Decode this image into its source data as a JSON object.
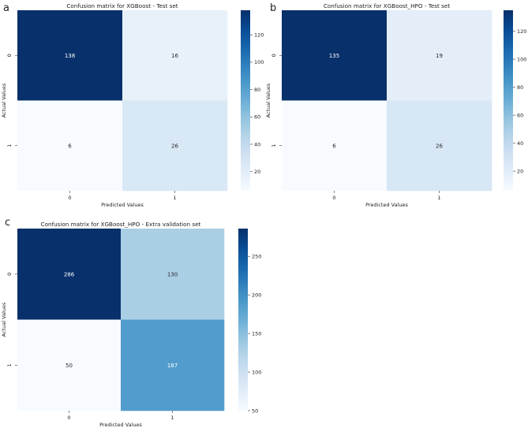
{
  "chart_data": [
    {
      "type": "heatmap",
      "panel_label": "a",
      "title": "Confusion matrix for XGBoost - Test set",
      "xlabel": "Predicted Values",
      "ylabel": "Actual Values",
      "x_ticks": [
        "0",
        "1"
      ],
      "y_ticks": [
        "0",
        "1"
      ],
      "values": [
        [
          138,
          16
        ],
        [
          6,
          26
        ]
      ],
      "color_range": [
        6,
        138
      ],
      "colorbar_ticks": [
        20,
        40,
        60,
        80,
        100,
        120
      ],
      "colormap": "Blues"
    },
    {
      "type": "heatmap",
      "panel_label": "b",
      "title": "Confusion matrix for XGBoost_HPO - Test set",
      "xlabel": "Predicted Values",
      "ylabel": "Actual Values",
      "x_ticks": [
        "0",
        "1"
      ],
      "y_ticks": [
        "0",
        "1"
      ],
      "values": [
        [
          135,
          19
        ],
        [
          6,
          26
        ]
      ],
      "color_range": [
        6,
        135
      ],
      "colorbar_ticks": [
        20,
        40,
        60,
        80,
        100,
        120
      ],
      "colormap": "Blues"
    },
    {
      "type": "heatmap",
      "panel_label": "c",
      "title": "Confusion matrix for XGBoost_HPO - Extra validation set",
      "xlabel": "Predicted Values",
      "ylabel": "Actual Values",
      "x_ticks": [
        "0",
        "1"
      ],
      "y_ticks": [
        "0",
        "1"
      ],
      "values": [
        [
          286,
          130
        ],
        [
          50,
          187
        ]
      ],
      "color_range": [
        50,
        286
      ],
      "colorbar_ticks": [
        50,
        100,
        150,
        200,
        250
      ],
      "colormap": "Blues"
    }
  ]
}
